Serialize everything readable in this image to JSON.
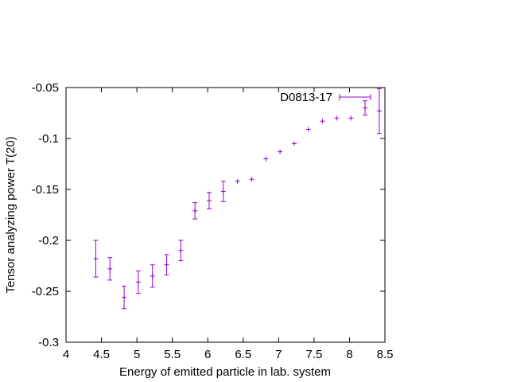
{
  "chart_data": {
    "type": "scatter",
    "title": "",
    "xlabel": "Energy of emitted particle in lab. system",
    "ylabel": "Tensor analyzing power T(20)",
    "xlim": [
      4,
      8.5
    ],
    "ylim": [
      -0.3,
      -0.05
    ],
    "x_ticks": [
      "4",
      "4.5",
      "5",
      "5.5",
      "6",
      "6.5",
      "7",
      "7.5",
      "8",
      "8.5"
    ],
    "y_ticks": [
      "-0.05",
      "-0.1",
      "-0.15",
      "-0.2",
      "-0.25",
      "-0.3"
    ],
    "grid": false,
    "legend_position": "top-right",
    "color": "#9400d3",
    "series": [
      {
        "name": "D0813-17",
        "points": [
          {
            "x": 4.42,
            "y": -0.218,
            "err": 0.018
          },
          {
            "x": 4.62,
            "y": -0.228,
            "err": 0.011
          },
          {
            "x": 4.82,
            "y": -0.256,
            "err": 0.011
          },
          {
            "x": 5.02,
            "y": -0.241,
            "err": 0.011
          },
          {
            "x": 5.22,
            "y": -0.235,
            "err": 0.011
          },
          {
            "x": 5.42,
            "y": -0.224,
            "err": 0.01
          },
          {
            "x": 5.62,
            "y": -0.21,
            "err": 0.01
          },
          {
            "x": 5.82,
            "y": -0.171,
            "err": 0.008
          },
          {
            "x": 6.02,
            "y": -0.161,
            "err": 0.008
          },
          {
            "x": 6.22,
            "y": -0.152,
            "err": 0.01
          },
          {
            "x": 6.42,
            "y": -0.142,
            "err": 0.002
          },
          {
            "x": 6.62,
            "y": -0.14,
            "err": 0.002
          },
          {
            "x": 6.82,
            "y": -0.12,
            "err": 0.002
          },
          {
            "x": 7.02,
            "y": -0.113,
            "err": 0.002
          },
          {
            "x": 7.22,
            "y": -0.105,
            "err": 0.002
          },
          {
            "x": 7.42,
            "y": -0.091,
            "err": 0.002
          },
          {
            "x": 7.62,
            "y": -0.083,
            "err": 0.002
          },
          {
            "x": 7.82,
            "y": -0.08,
            "err": 0.002
          },
          {
            "x": 8.02,
            "y": -0.08,
            "err": 0.002
          },
          {
            "x": 8.22,
            "y": -0.07,
            "err": 0.007
          },
          {
            "x": 8.42,
            "y": -0.073,
            "err": 0.022
          }
        ]
      }
    ]
  }
}
